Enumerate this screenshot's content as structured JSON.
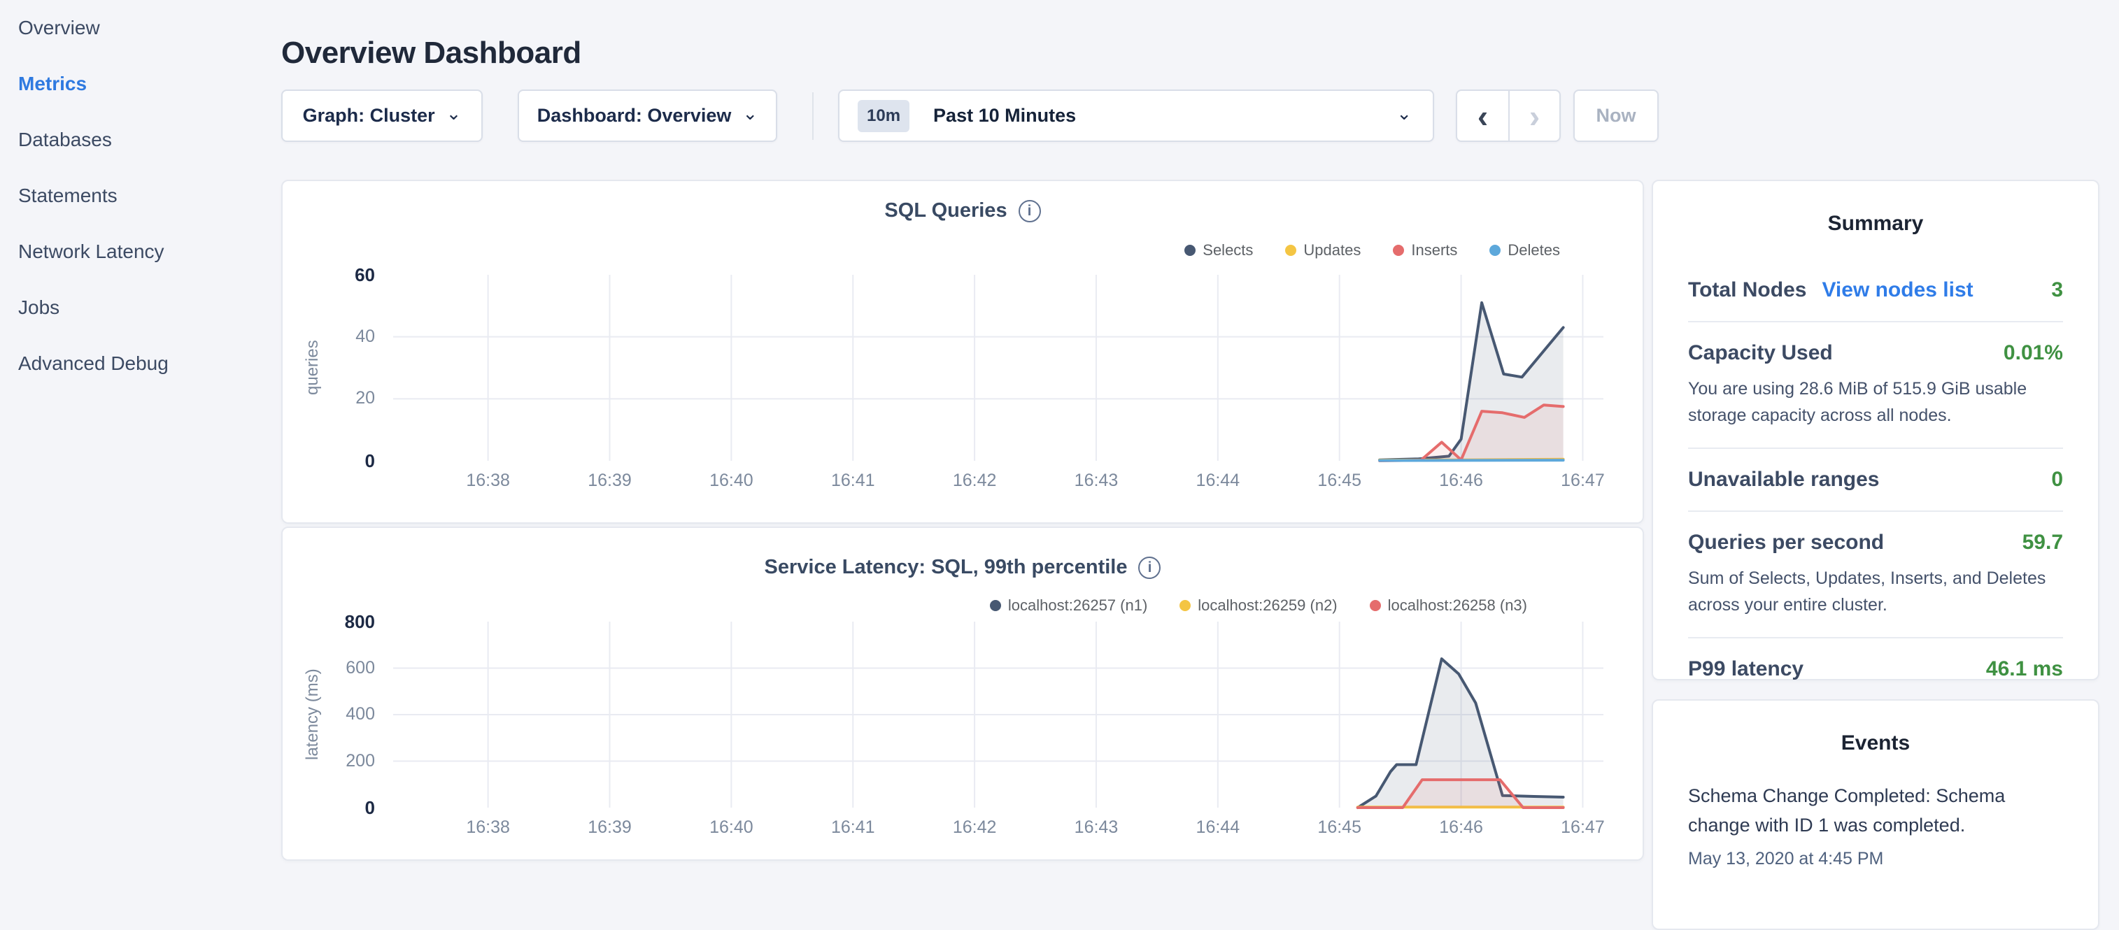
{
  "icons": {
    "info": "i",
    "chevron_down": "⌄",
    "prev": "‹",
    "next": "›"
  },
  "sidebar": {
    "items": [
      {
        "id": "overview",
        "label": "Overview",
        "active": false
      },
      {
        "id": "metrics",
        "label": "Metrics",
        "active": true
      },
      {
        "id": "databases",
        "label": "Databases",
        "active": false
      },
      {
        "id": "statements",
        "label": "Statements",
        "active": false
      },
      {
        "id": "network-latency",
        "label": "Network Latency",
        "active": false
      },
      {
        "id": "jobs",
        "label": "Jobs",
        "active": false
      },
      {
        "id": "advanced-debug",
        "label": "Advanced Debug",
        "active": false
      }
    ]
  },
  "header": {
    "title": "Overview Dashboard"
  },
  "toolbar": {
    "graph_dropdown": "Graph: Cluster",
    "dashboard_dropdown": "Dashboard: Overview",
    "time_badge": "10m",
    "time_label": "Past 10 Minutes",
    "now_label": "Now"
  },
  "summary": {
    "title": "Summary",
    "rows": [
      {
        "label": "Total Nodes",
        "link": "View nodes list",
        "value": "3",
        "subtext": ""
      },
      {
        "label": "Capacity Used",
        "link": "",
        "value": "0.01%",
        "subtext": "You are using 28.6 MiB of 515.9 GiB usable storage capacity across all nodes."
      },
      {
        "label": "Unavailable ranges",
        "link": "",
        "value": "0",
        "subtext": ""
      },
      {
        "label": "Queries per second",
        "link": "",
        "value": "59.7",
        "subtext": "Sum of Selects, Updates, Inserts, and Deletes across your entire cluster."
      },
      {
        "label": "P99 latency",
        "link": "",
        "value": "46.1 ms",
        "subtext": ""
      }
    ]
  },
  "events": {
    "title": "Events",
    "items": [
      {
        "text": "Schema Change Completed: Schema change with ID 1 was completed.",
        "timestamp": "May 13, 2020 at 4:45 PM"
      }
    ]
  },
  "chart_data": [
    {
      "type": "area",
      "name": "sql-queries",
      "title": "SQL Queries",
      "ylabel": "queries",
      "ylim": [
        0,
        60
      ],
      "yticks": [
        60,
        40,
        20,
        0
      ],
      "grid_yticks": [
        40,
        20
      ],
      "x_axis": "time (16:38–16:47, 1-minute gridlines)",
      "xlim_minutes": [
        37.22,
        47.17
      ],
      "xticks": [
        {
          "t": 38,
          "label": "16:38"
        },
        {
          "t": 39,
          "label": "16:39"
        },
        {
          "t": 40,
          "label": "16:40"
        },
        {
          "t": 41,
          "label": "16:41"
        },
        {
          "t": 42,
          "label": "16:42"
        },
        {
          "t": 43,
          "label": "16:43"
        },
        {
          "t": 44,
          "label": "16:44"
        },
        {
          "t": 45,
          "label": "16:45"
        },
        {
          "t": 46,
          "label": "16:46"
        },
        {
          "t": 47,
          "label": "16:47"
        }
      ],
      "legend_position": "top-right",
      "grid": true,
      "series": [
        {
          "name": "Selects",
          "color": "#475872",
          "fill": "rgba(71,88,114,0.12)",
          "points": [
            [
              45.33,
              0.3
            ],
            [
              45.65,
              0.6
            ],
            [
              45.9,
              1.5
            ],
            [
              46.0,
              7
            ],
            [
              46.17,
              51
            ],
            [
              46.35,
              28
            ],
            [
              46.5,
              27
            ],
            [
              46.84,
              43
            ]
          ]
        },
        {
          "name": "Updates",
          "color": "#f4c543",
          "fill": "rgba(244,197,67,0.15)",
          "points": [
            [
              45.33,
              0.2
            ],
            [
              46.0,
              0.3
            ],
            [
              46.84,
              0.5
            ]
          ]
        },
        {
          "name": "Inserts",
          "color": "#e56c6c",
          "fill": "rgba(229,108,108,0.10)",
          "points": [
            [
              45.33,
              0
            ],
            [
              45.67,
              0.2
            ],
            [
              45.84,
              6
            ],
            [
              46.0,
              0.3
            ],
            [
              46.17,
              16
            ],
            [
              46.34,
              15.5
            ],
            [
              46.52,
              14
            ],
            [
              46.68,
              18
            ],
            [
              46.84,
              17.5
            ]
          ]
        },
        {
          "name": "Deletes",
          "color": "#5da8db",
          "fill": "rgba(93,168,219,0.15)",
          "points": [
            [
              45.33,
              0.1
            ],
            [
              46.84,
              0.2
            ]
          ]
        }
      ]
    },
    {
      "type": "area",
      "name": "service-latency",
      "title": "Service Latency: SQL, 99th percentile",
      "ylabel": "latency (ms)",
      "ylim": [
        0,
        800
      ],
      "yticks": [
        800,
        600,
        400,
        200,
        0
      ],
      "grid_yticks": [
        600,
        400,
        200
      ],
      "x_axis": "time (16:38–16:47, 1-minute gridlines)",
      "xlim_minutes": [
        37.22,
        47.17
      ],
      "xticks": [
        {
          "t": 38,
          "label": "16:38"
        },
        {
          "t": 39,
          "label": "16:39"
        },
        {
          "t": 40,
          "label": "16:40"
        },
        {
          "t": 41,
          "label": "16:41"
        },
        {
          "t": 42,
          "label": "16:42"
        },
        {
          "t": 43,
          "label": "16:43"
        },
        {
          "t": 44,
          "label": "16:44"
        },
        {
          "t": 45,
          "label": "16:45"
        },
        {
          "t": 46,
          "label": "16:46"
        },
        {
          "t": 47,
          "label": "16:47"
        }
      ],
      "legend_position": "top-right",
      "grid": true,
      "series": [
        {
          "name": "localhost:26257 (n1)",
          "color": "#475872",
          "fill": "rgba(71,88,114,0.12)",
          "points": [
            [
              45.15,
              0
            ],
            [
              45.3,
              50
            ],
            [
              45.42,
              155
            ],
            [
              45.47,
              185
            ],
            [
              45.63,
              185
            ],
            [
              45.84,
              640
            ],
            [
              45.98,
              575
            ],
            [
              46.12,
              450
            ],
            [
              46.34,
              52
            ],
            [
              46.6,
              48
            ],
            [
              46.84,
              45
            ]
          ]
        },
        {
          "name": "localhost:26259 (n2)",
          "color": "#f4c543",
          "fill": "rgba(244,197,67,0.15)",
          "points": [
            [
              45.15,
              2
            ],
            [
              46.84,
              2
            ]
          ]
        },
        {
          "name": "localhost:26258 (n3)",
          "color": "#e56c6c",
          "fill": "rgba(229,108,108,0.10)",
          "points": [
            [
              45.15,
              0
            ],
            [
              45.52,
              0
            ],
            [
              45.68,
              120
            ],
            [
              46.32,
              120
            ],
            [
              46.51,
              0
            ],
            [
              46.84,
              0
            ]
          ]
        }
      ]
    }
  ]
}
